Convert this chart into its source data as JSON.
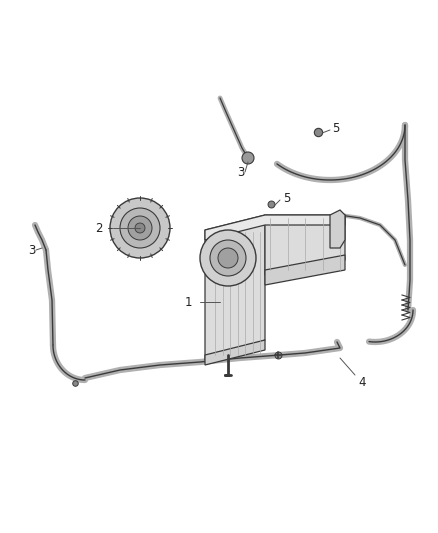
{
  "background_color": "#ffffff",
  "line_color": "#3a3a3a",
  "gray_color": "#888888",
  "light_gray": "#c8c8c8",
  "mid_gray": "#aaaaaa",
  "fill_gray": "#e0e0e0",
  "lw_main": 1.3,
  "label_fontsize": 8.5,
  "label_color": "#222222",
  "hose_outer_lw": 4.5,
  "hose_inner_lw": 1.0,
  "bottle_fill": "#dcdcdc",
  "cap_fill": "#c8c8c8"
}
